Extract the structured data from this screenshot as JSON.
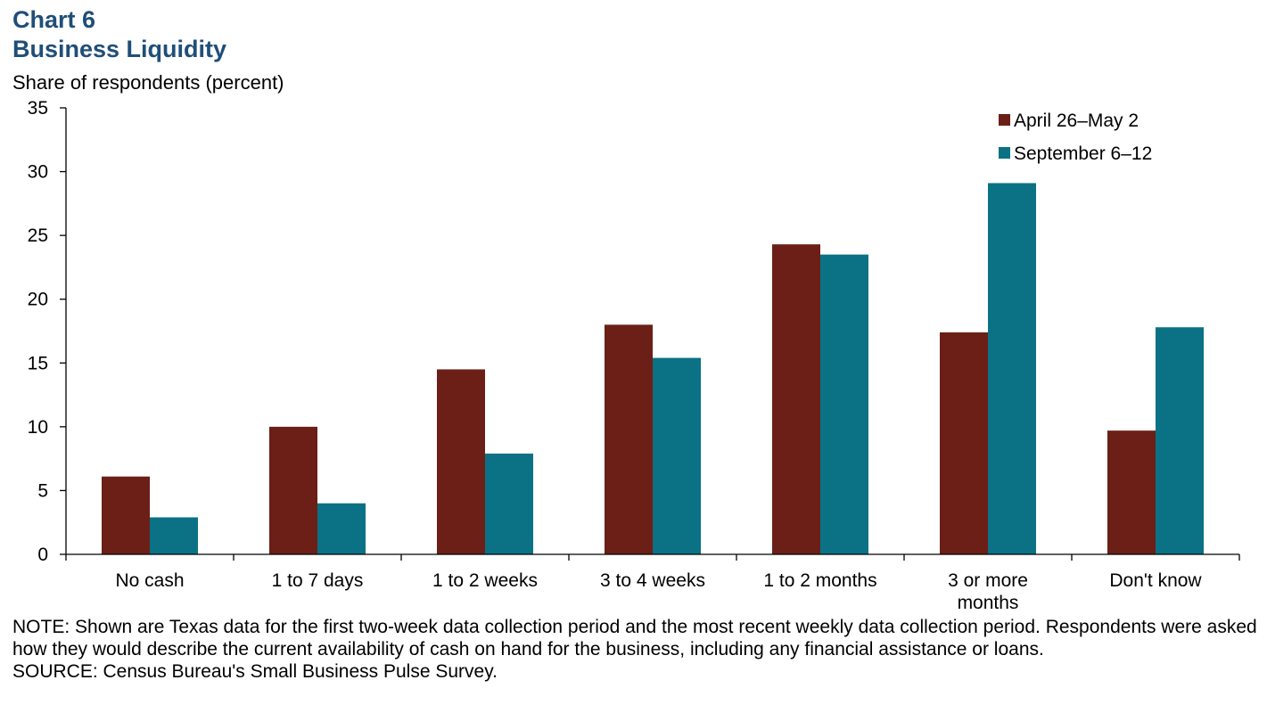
{
  "header": {
    "chart_number": "Chart 6",
    "title": "Business Liquidity"
  },
  "colors": {
    "title": "#1f4e79",
    "april": "#6b1f17",
    "september": "#0a7284",
    "axis": "#000000"
  },
  "chart_data": {
    "type": "bar",
    "title": "Business Liquidity",
    "ylabel": "Share of respondents (percent)",
    "xlabel": "",
    "ylim": [
      0,
      35
    ],
    "yticks": [
      0,
      5,
      10,
      15,
      20,
      25,
      30,
      35
    ],
    "grid": false,
    "legend_position": "top-right",
    "categories": [
      [
        "No cash"
      ],
      [
        "1 to 7 days"
      ],
      [
        "1 to 2 weeks"
      ],
      [
        "3 to 4 weeks"
      ],
      [
        "1 to 2 months"
      ],
      [
        "3 or more",
        "months"
      ],
      [
        "Don't know"
      ]
    ],
    "series": [
      {
        "name": "April 26–May 2",
        "color": "#6b1f17",
        "values": [
          6.1,
          10.0,
          14.5,
          18.0,
          24.3,
          17.4,
          9.7
        ]
      },
      {
        "name": "September 6–12",
        "color": "#0a7284",
        "values": [
          2.9,
          4.0,
          7.9,
          15.4,
          23.5,
          29.1,
          17.8
        ]
      }
    ]
  },
  "notes": {
    "note": "NOTE: Shown are Texas data for the first two-week data collection period and the most recent weekly data collection period. Respondents were asked how they would describe the current availability of cash on hand for the business, including any financial assistance or loans.",
    "source": "SOURCE: Census Bureau's Small Business Pulse Survey."
  }
}
